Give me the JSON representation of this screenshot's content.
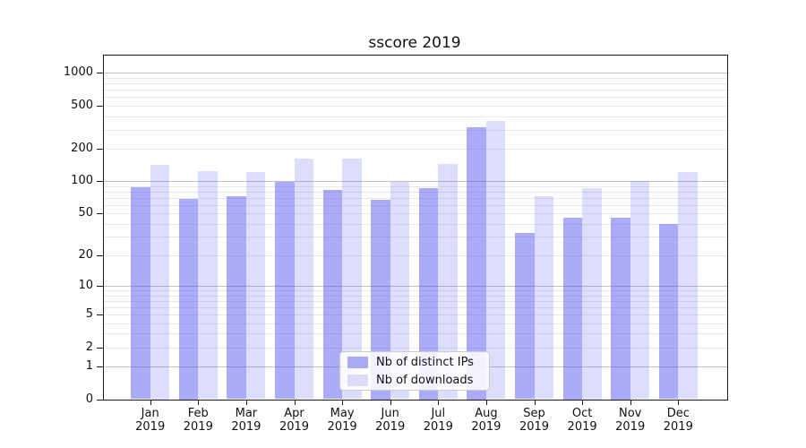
{
  "chart_data": {
    "type": "bar",
    "title": "sscore 2019",
    "categories": [
      "Jan 2019",
      "Feb 2019",
      "Mar 2019",
      "Apr 2019",
      "May 2019",
      "Jun 2019",
      "Jul 2019",
      "Aug 2019",
      "Sep 2019",
      "Oct 2019",
      "Nov 2019",
      "Dec 2019"
    ],
    "series": [
      {
        "name": "Nb of distinct IPs",
        "values": [
          87,
          69,
          73,
          98,
          83,
          67,
          86,
          315,
          33,
          46,
          46,
          40
        ],
        "color": "rgba(72,72,238,0.46)",
        "legend_color": "#abaaf7"
      },
      {
        "name": "Nb of downloads",
        "values": [
          143,
          123,
          121,
          162,
          163,
          98,
          145,
          358,
          73,
          86,
          100,
          121
        ],
        "color": "rgba(72,72,238,0.19)",
        "legend_color": "#dcdcfc"
      }
    ],
    "y_axis": {
      "scale": "log1p",
      "tick_labels": [
        0,
        1,
        2,
        5,
        10,
        20,
        50,
        100,
        200,
        500,
        1000
      ],
      "ylim": [
        0,
        1400
      ],
      "grid": true,
      "grid_major_at": [
        1,
        10,
        100,
        1000
      ]
    },
    "x_axis": {
      "label_lines": 2
    },
    "legend": {
      "position": "lower center"
    },
    "colors": {
      "bar_base": "#4848ee",
      "grid_major": "#c2c2c2",
      "grid_minor": "#e9e9e9",
      "spine": "#1a1a1a"
    }
  }
}
